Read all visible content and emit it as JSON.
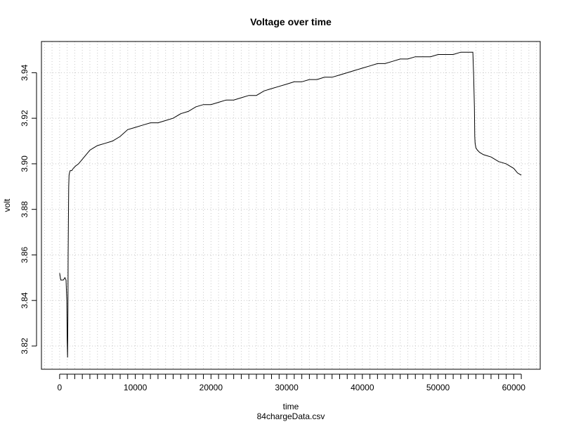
{
  "chart_data": {
    "type": "line",
    "title": "Voltage over time",
    "xlabel": "time",
    "ylabel": "volt",
    "subtitle": "84chargeData.csv",
    "xlim": [
      -2400,
      63500
    ],
    "ylim": [
      3.8098,
      3.9537
    ],
    "x_ticks": [
      0,
      10000,
      20000,
      30000,
      40000,
      50000,
      60000
    ],
    "y_ticks": [
      3.82,
      3.84,
      3.86,
      3.88,
      3.9,
      3.92,
      3.94
    ],
    "x_minor_step": 1000,
    "grid": true,
    "series": [
      {
        "x": [
          0,
          150,
          300,
          500,
          700,
          850,
          950,
          1000,
          1050,
          1100,
          1130,
          1160,
          1200,
          1250,
          1300,
          1400,
          1600,
          1800,
          2100,
          2500,
          3000,
          3500,
          4000,
          4500,
          5000,
          6000,
          7000,
          8000,
          9000,
          10000,
          11000,
          12000,
          13000,
          14000,
          15000,
          16000,
          17000,
          18000,
          19000,
          20000,
          21000,
          22000,
          23000,
          24000,
          25000,
          26000,
          27000,
          28000,
          29000,
          30000,
          31000,
          32000,
          33000,
          34000,
          35000,
          36000,
          37000,
          38000,
          39000,
          40000,
          41000,
          42000,
          43000,
          44000,
          45000,
          46000,
          47000,
          48000,
          49000,
          50000,
          51000,
          52000,
          53000,
          54000,
          54600,
          54700,
          54800,
          54850,
          54900,
          54950,
          55000,
          55200,
          55500,
          56000,
          57000,
          58000,
          59000,
          60000,
          60500,
          61000
        ],
        "y": [
          3.852,
          3.849,
          3.849,
          3.849,
          3.85,
          3.849,
          3.84,
          3.823,
          3.815,
          3.836,
          3.86,
          3.875,
          3.89,
          3.895,
          3.896,
          3.897,
          3.897,
          3.898,
          3.899,
          3.9,
          3.902,
          3.904,
          3.906,
          3.907,
          3.908,
          3.909,
          3.91,
          3.912,
          3.915,
          3.916,
          3.917,
          3.918,
          3.918,
          3.919,
          3.92,
          3.922,
          3.923,
          3.925,
          3.926,
          3.926,
          3.927,
          3.928,
          3.928,
          3.929,
          3.93,
          3.93,
          3.932,
          3.933,
          3.934,
          3.935,
          3.936,
          3.936,
          3.937,
          3.937,
          3.938,
          3.938,
          3.939,
          3.94,
          3.941,
          3.942,
          3.943,
          3.944,
          3.944,
          3.945,
          3.946,
          3.946,
          3.947,
          3.947,
          3.947,
          3.948,
          3.948,
          3.948,
          3.949,
          3.949,
          3.949,
          3.939,
          3.925,
          3.912,
          3.909,
          3.908,
          3.907,
          3.906,
          3.905,
          3.904,
          3.903,
          3.901,
          3.9,
          3.898,
          3.896,
          3.895
        ]
      }
    ]
  }
}
